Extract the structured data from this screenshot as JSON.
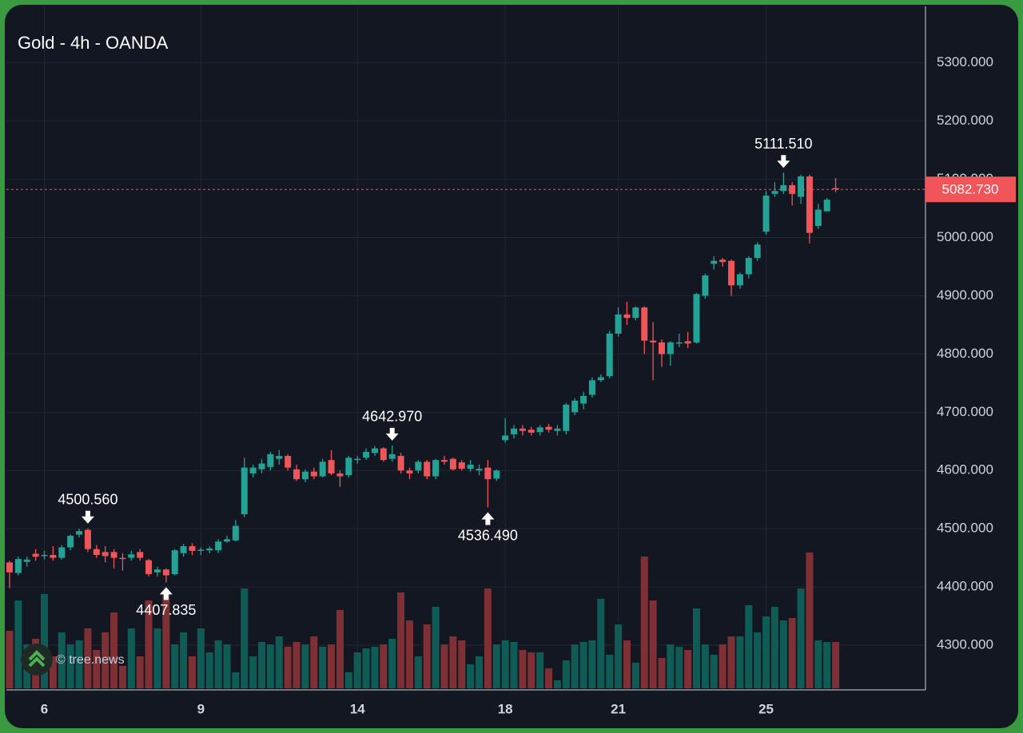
{
  "chart_data": {
    "type": "candlestick",
    "title": "Gold - 4h - OANDA",
    "categories": [
      null,
      null,
      null,
      null,
      "6",
      null,
      null,
      null,
      null,
      null,
      null,
      null,
      null,
      null,
      null,
      null,
      null,
      null,
      null,
      null,
      null,
      null,
      "9",
      null,
      null,
      null,
      null,
      null,
      null,
      null,
      null,
      null,
      null,
      null,
      null,
      null,
      null,
      null,
      null,
      null,
      "14",
      null,
      null,
      null,
      null,
      null,
      null,
      null,
      null,
      null,
      null,
      null,
      null,
      null,
      null,
      null,
      null,
      "18",
      null,
      null,
      null,
      null,
      null,
      null,
      null,
      null,
      null,
      null,
      null,
      null,
      "21",
      null,
      null,
      null,
      null,
      null,
      null,
      null,
      null,
      null,
      null,
      null,
      null,
      null,
      null,
      null,
      null,
      "25",
      null,
      null,
      null,
      null,
      null,
      null,
      null,
      null
    ],
    "open": [
      4442,
      4424,
      4443,
      4457,
      4453,
      4455,
      4450,
      4468,
      4490,
      4498,
      4465,
      4460,
      4460,
      4450,
      4450,
      4460,
      4446,
      4425,
      4430,
      4422,
      4458,
      4470,
      4462,
      4463,
      4463,
      4478,
      4480,
      4525,
      4595,
      4602,
      4606,
      4620,
      4625,
      4602,
      4585,
      4598,
      4590,
      4618,
      4595,
      4592,
      4618,
      4622,
      4630,
      4638,
      4620,
      4625,
      4600,
      4600,
      4615,
      4590,
      4618,
      4620,
      4614,
      4603,
      4600,
      4605,
      4586,
      4652,
      4662,
      4672,
      4670,
      4666,
      4675,
      4668,
      4668,
      4700,
      4715,
      4730,
      4755,
      4762,
      4835,
      4868,
      4862,
      4880,
      4823,
      4820,
      4800,
      4818,
      4822,
      4820,
      4900,
      4955,
      4962,
      4960,
      4918,
      4937,
      4965,
      5010,
      5075,
      5080,
      5090,
      5070,
      5105,
      5020,
      5045,
      5085
    ],
    "high": [
      4445,
      4452,
      4452,
      4465,
      4462,
      4470,
      4472,
      4490,
      4500,
      4500.56,
      4472,
      4470,
      4465,
      4458,
      4462,
      4465,
      4448,
      4435,
      4432,
      4465,
      4474,
      4475,
      4468,
      4470,
      4482,
      4488,
      4515,
      4622,
      4610,
      4620,
      4632,
      4635,
      4628,
      4610,
      4602,
      4605,
      4620,
      4635,
      4600,
      4625,
      4625,
      4638,
      4642,
      4640,
      4642.97,
      4630,
      4605,
      4618,
      4618,
      4620,
      4625,
      4622,
      4618,
      4618,
      4610,
      4618,
      4602,
      4690,
      4678,
      4678,
      4675,
      4678,
      4680,
      4678,
      4716,
      4724,
      4735,
      4760,
      4765,
      4840,
      4880,
      4890,
      4882,
      4882,
      4855,
      4825,
      4822,
      4835,
      4838,
      4905,
      4938,
      4968,
      4965,
      4962,
      4940,
      4968,
      4992,
      5080,
      5095,
      5111.51,
      5095,
      5108,
      5108,
      5058,
      5068,
      5102
    ],
    "low": [
      4398,
      4420,
      4435,
      4445,
      4447,
      4445,
      4447,
      4463,
      4485,
      4460,
      4450,
      4442,
      4432,
      4428,
      4445,
      4445,
      4418,
      4418,
      4407.835,
      4420,
      4452,
      4455,
      4455,
      4458,
      4458,
      4476,
      4478,
      4520,
      4588,
      4595,
      4600,
      4610,
      4600,
      4582,
      4580,
      4585,
      4588,
      4592,
      4572,
      4588,
      4612,
      4618,
      4625,
      4615,
      4615,
      4595,
      4585,
      4595,
      4585,
      4585,
      4610,
      4600,
      4600,
      4598,
      4592,
      4536.49,
      4582,
      4648,
      4655,
      4660,
      4660,
      4660,
      4665,
      4660,
      4662,
      4695,
      4705,
      4725,
      4752,
      4758,
      4830,
      4850,
      4858,
      4800,
      4755,
      4778,
      4780,
      4812,
      4810,
      4818,
      4895,
      4945,
      4950,
      4900,
      4912,
      4930,
      4960,
      5005,
      5070,
      5075,
      5055,
      5058,
      4990,
      5015,
      5050,
      5078
    ],
    "close": [
      4425,
      4448,
      4447,
      4452,
      4455,
      4450,
      4468,
      4488,
      4496,
      4465,
      4455,
      4453,
      4450,
      4448,
      4456,
      4450,
      4422,
      4430,
      4420,
      4463,
      4470,
      4462,
      4464,
      4466,
      4478,
      4482,
      4505,
      4605,
      4605,
      4612,
      4628,
      4625,
      4605,
      4585,
      4598,
      4590,
      4615,
      4595,
      4590,
      4622,
      4620,
      4632,
      4638,
      4618,
      4628,
      4600,
      4595,
      4615,
      4590,
      4618,
      4615,
      4602,
      4603,
      4610,
      4603,
      4585,
      4600,
      4660,
      4672,
      4668,
      4665,
      4674,
      4670,
      4672,
      4713,
      4720,
      4728,
      4755,
      4760,
      4835,
      4868,
      4862,
      4880,
      4823,
      4820,
      4800,
      4820,
      4820,
      4818,
      4903,
      4935,
      4960,
      4958,
      4918,
      4937,
      4965,
      4988,
      5072,
      5080,
      5090,
      5075,
      5105,
      5008,
      5048,
      5065,
      5082.73
    ],
    "volume": [
      72,
      110,
      55,
      62,
      118,
      40,
      70,
      55,
      60,
      75,
      48,
      70,
      95,
      28,
      75,
      40,
      110,
      75,
      120,
      55,
      70,
      40,
      75,
      45,
      60,
      55,
      20,
      125,
      40,
      58,
      55,
      65,
      52,
      58,
      55,
      65,
      52,
      55,
      98,
      20,
      45,
      50,
      52,
      55,
      62,
      120,
      85,
      40,
      80,
      102,
      55,
      65,
      60,
      30,
      40,
      125,
      55,
      60,
      58,
      48,
      45,
      45,
      25,
      10,
      35,
      55,
      58,
      60,
      112,
      42,
      80,
      60,
      32,
      165,
      110,
      38,
      55,
      52,
      48,
      100,
      55,
      42,
      55,
      65,
      65,
      104,
      70,
      90,
      102,
      85,
      88,
      125,
      170,
      60,
      58,
      58
    ],
    "up_color": "#22a396",
    "down_color": "#f0555a",
    "volume_up_color": "#0f5c56",
    "volume_down_color": "#7e3035",
    "ylim": [
      4226,
      5397
    ],
    "yticks": [
      {
        "value": 4300,
        "label": "4300.000"
      },
      {
        "value": 4400,
        "label": "4400.000"
      },
      {
        "value": 4500,
        "label": "4500.000"
      },
      {
        "value": 4600,
        "label": "4600.000"
      },
      {
        "value": 4700,
        "label": "4700.000"
      },
      {
        "value": 4800,
        "label": "4800.000"
      },
      {
        "value": 4900,
        "label": "4900.000"
      },
      {
        "value": 5000,
        "label": "5000.000"
      },
      {
        "value": 5100,
        "label": "5100.000"
      },
      {
        "value": 5200,
        "label": "5200.000"
      },
      {
        "value": 5300,
        "label": "5300.000"
      }
    ],
    "grid": true,
    "annotations": [
      {
        "value": 4500.56,
        "label": "4500.560"
      },
      {
        "value": 4407.835,
        "label": "4407.835"
      },
      {
        "value": 4642.97,
        "label": "4642.970"
      },
      {
        "value": 4536.49,
        "label": "4536.490"
      },
      {
        "value": 5111.51,
        "label": "5111.510"
      }
    ],
    "current_price": {
      "value": 5082.73,
      "label": "5082.730",
      "color": "#f0555a"
    }
  },
  "watermark": "© tree.news"
}
